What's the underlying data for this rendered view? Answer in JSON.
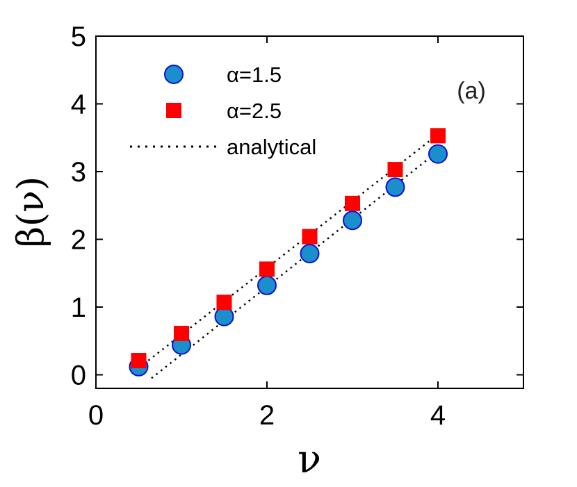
{
  "chart_data": {
    "type": "scatter",
    "xlabel": "ν",
    "ylabel": "β(ν)",
    "xlim": [
      0,
      5
    ],
    "ylim": [
      -0.2,
      5
    ],
    "xticks": [
      0,
      2,
      4
    ],
    "yticks": [
      0,
      1,
      2,
      3,
      4,
      5
    ],
    "grid": false,
    "legend_placement": "top-left",
    "annotation": "(a)",
    "series": [
      {
        "name": "α=1.5",
        "marker": "circle",
        "color": "#1a8fcb",
        "edge_color": "#1010d0",
        "x": [
          0.5,
          1.0,
          1.5,
          2.0,
          2.5,
          3.0,
          3.5,
          4.0
        ],
        "y": [
          0.12,
          0.44,
          0.86,
          1.32,
          1.79,
          2.28,
          2.77,
          3.26
        ]
      },
      {
        "name": "α=2.5",
        "marker": "square",
        "color": "#ff0000",
        "x": [
          0.5,
          1.0,
          1.5,
          2.0,
          2.5,
          3.0,
          3.5,
          4.0
        ],
        "y": [
          0.21,
          0.61,
          1.07,
          1.56,
          2.04,
          2.53,
          3.03,
          3.53
        ]
      },
      {
        "name": "analytical",
        "line_style": "dotted",
        "color": "#000000",
        "lines": [
          {
            "x": [
              0.45,
              4.0
            ],
            "y": [
              0.05,
              3.55
            ]
          },
          {
            "x": [
              0.65,
              4.0
            ],
            "y": [
              -0.05,
              3.3
            ]
          }
        ]
      }
    ]
  }
}
